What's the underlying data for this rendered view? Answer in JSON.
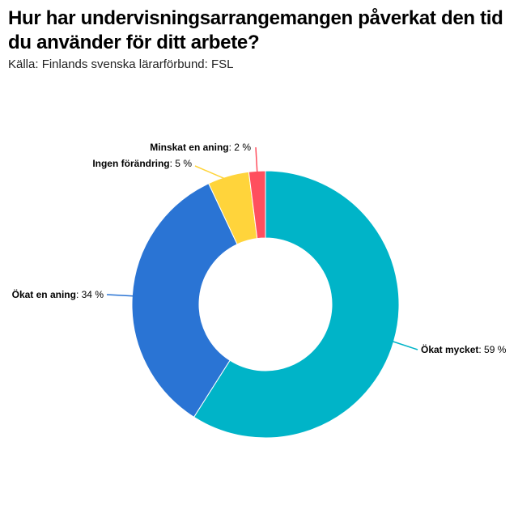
{
  "header": {
    "title": "Hur har undervisningsarrangemangen påverkat den tid du använder för ditt arbete?",
    "source": "Källa: Finlands svenska lärarförbund: FSL"
  },
  "chart_data": {
    "type": "pie",
    "variant": "donut",
    "title": "Hur har undervisningsarrangemangen påverkat den tid du använder för ditt arbete?",
    "subtitle": "Källa: Finlands svenska lärarförbund: FSL",
    "unit": "%",
    "slices": [
      {
        "label": "Ökat mycket",
        "value": 59,
        "display": "59 %",
        "color": "#00b4c8"
      },
      {
        "label": "Ökat en aning",
        "value": 34,
        "display": "34 %",
        "color": "#2a74d4"
      },
      {
        "label": "Ingen förändring",
        "value": 5,
        "display": "5 %",
        "color": "#ffd43b"
      },
      {
        "label": "Minskat en aning",
        "value": 2,
        "display": "2 %",
        "color": "#ff4f5e"
      }
    ]
  }
}
